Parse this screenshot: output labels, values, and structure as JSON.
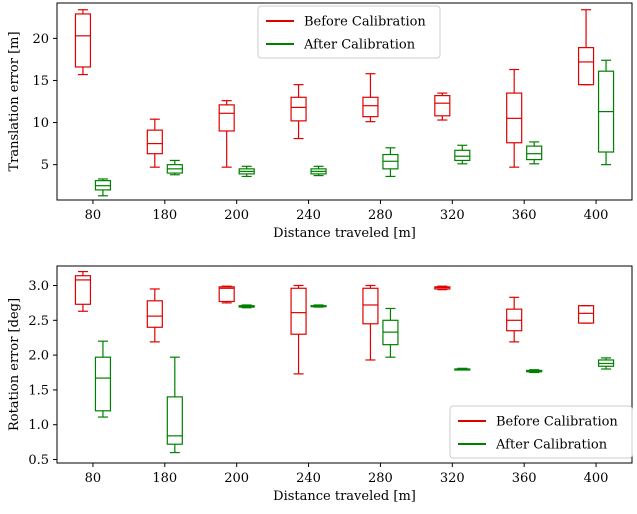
{
  "chart_data": [
    {
      "type": "box",
      "xlabel": "Distance traveled [m]",
      "ylabel": "Translation error [m]",
      "categories": [
        "80",
        "180",
        "200",
        "240",
        "280",
        "320",
        "360",
        "400"
      ],
      "ylim": [
        0.8,
        24.2
      ],
      "yticks": [
        5,
        10,
        15,
        20
      ],
      "legend_position": "top-center",
      "series": [
        {
          "name": "Before Calibration",
          "color": "#e00000",
          "boxes": [
            {
              "min": 15.7,
              "q1": 16.6,
              "median": 20.3,
              "q3": 22.9,
              "max": 23.4
            },
            {
              "min": 4.7,
              "q1": 6.3,
              "median": 7.5,
              "q3": 9.1,
              "max": 10.4
            },
            {
              "min": 4.7,
              "q1": 9.0,
              "median": 11.1,
              "q3": 12.1,
              "max": 12.6
            },
            {
              "min": 8.1,
              "q1": 10.2,
              "median": 11.8,
              "q3": 13.0,
              "max": 14.5
            },
            {
              "min": 10.1,
              "q1": 10.7,
              "median": 12.0,
              "q3": 13.0,
              "max": 15.8
            },
            {
              "min": 10.3,
              "q1": 10.8,
              "median": 12.3,
              "q3": 13.2,
              "max": 13.5
            },
            {
              "min": 4.7,
              "q1": 7.6,
              "median": 10.5,
              "q3": 13.5,
              "max": 16.3
            },
            {
              "min": 14.5,
              "q1": 14.5,
              "median": 17.2,
              "q3": 18.9,
              "max": 23.4
            }
          ]
        },
        {
          "name": "After Calibration",
          "color": "#008000",
          "boxes": [
            {
              "min": 1.3,
              "q1": 2.0,
              "median": 2.5,
              "q3": 3.1,
              "max": 3.3
            },
            {
              "min": 3.8,
              "q1": 4.0,
              "median": 4.5,
              "q3": 5.0,
              "max": 5.5
            },
            {
              "min": 3.6,
              "q1": 3.9,
              "median": 4.2,
              "q3": 4.5,
              "max": 4.8
            },
            {
              "min": 3.7,
              "q1": 3.9,
              "median": 4.2,
              "q3": 4.5,
              "max": 4.8
            },
            {
              "min": 3.6,
              "q1": 4.5,
              "median": 5.4,
              "q3": 6.2,
              "max": 7.0
            },
            {
              "min": 5.1,
              "q1": 5.5,
              "median": 6.0,
              "q3": 6.7,
              "max": 7.3
            },
            {
              "min": 5.1,
              "q1": 5.6,
              "median": 6.3,
              "q3": 7.2,
              "max": 7.7
            },
            {
              "min": 5.0,
              "q1": 6.5,
              "median": 11.3,
              "q3": 16.1,
              "max": 17.4
            }
          ]
        }
      ]
    },
    {
      "type": "box",
      "xlabel": "Distance traveled [m]",
      "ylabel": "Rotation error [deg]",
      "categories": [
        "80",
        "180",
        "200",
        "240",
        "280",
        "320",
        "360",
        "400"
      ],
      "ylim": [
        0.45,
        3.28
      ],
      "yticks": [
        0.5,
        1.0,
        1.5,
        2.0,
        2.5,
        3.0
      ],
      "ytick_labels": [
        "0.5",
        "1.0",
        "1.5",
        "2.0",
        "2.5",
        "3.0"
      ],
      "legend_position": "bottom-right",
      "series": [
        {
          "name": "Before Calibration",
          "color": "#e00000",
          "boxes": [
            {
              "min": 2.63,
              "q1": 2.73,
              "median": 3.08,
              "q3": 3.14,
              "max": 3.2
            },
            {
              "min": 2.19,
              "q1": 2.4,
              "median": 2.56,
              "q3": 2.78,
              "max": 2.95
            },
            {
              "min": 2.75,
              "q1": 2.77,
              "median": 2.96,
              "q3": 2.98,
              "max": 2.99
            },
            {
              "min": 1.73,
              "q1": 2.3,
              "median": 2.61,
              "q3": 2.96,
              "max": 3.0
            },
            {
              "min": 1.93,
              "q1": 2.45,
              "median": 2.72,
              "q3": 2.96,
              "max": 3.0
            },
            {
              "min": 2.94,
              "q1": 2.95,
              "median": 2.97,
              "q3": 2.98,
              "max": 2.99
            },
            {
              "min": 2.19,
              "q1": 2.35,
              "median": 2.5,
              "q3": 2.66,
              "max": 2.83
            },
            {
              "min": 2.46,
              "q1": 2.46,
              "median": 2.6,
              "q3": 2.71,
              "max": 2.71
            }
          ]
        },
        {
          "name": "After Calibration",
          "color": "#008000",
          "boxes": [
            {
              "min": 1.11,
              "q1": 1.2,
              "median": 1.67,
              "q3": 1.97,
              "max": 2.2
            },
            {
              "min": 0.6,
              "q1": 0.72,
              "median": 0.84,
              "q3": 1.4,
              "max": 1.97
            },
            {
              "min": 2.68,
              "q1": 2.69,
              "median": 2.7,
              "q3": 2.71,
              "max": 2.72
            },
            {
              "min": 2.69,
              "q1": 2.7,
              "median": 2.7,
              "q3": 2.71,
              "max": 2.72
            },
            {
              "min": 1.97,
              "q1": 2.15,
              "median": 2.33,
              "q3": 2.5,
              "max": 2.67
            },
            {
              "min": 1.79,
              "q1": 1.8,
              "median": 1.8,
              "q3": 1.8,
              "max": 1.81
            },
            {
              "min": 1.75,
              "q1": 1.76,
              "median": 1.77,
              "q3": 1.78,
              "max": 1.79
            },
            {
              "min": 1.8,
              "q1": 1.84,
              "median": 1.88,
              "q3": 1.93,
              "max": 1.96
            }
          ]
        }
      ]
    }
  ]
}
